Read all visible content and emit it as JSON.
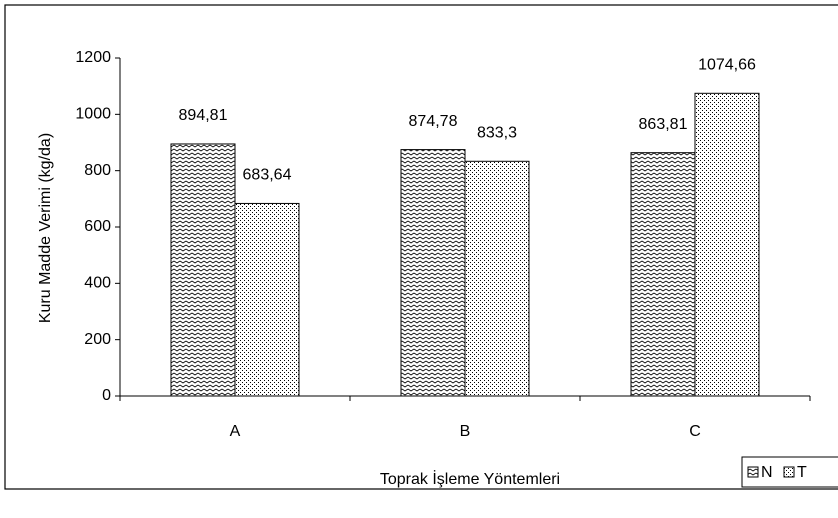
{
  "chart_data": {
    "type": "bar",
    "x_label": "Toprak İşleme Yöntemleri",
    "y_label": "Kuru Madde Verimi (kg/da)",
    "categories": [
      "A",
      "B",
      "C"
    ],
    "series": [
      {
        "name": "N",
        "color": "#000000",
        "values": [
          894.81,
          874.78,
          863.81
        ],
        "value_labels": [
          "894,81",
          "874,78",
          "863,81"
        ]
      },
      {
        "name": "T",
        "color": "#000000",
        "values": [
          683.64,
          833.3,
          1074.66
        ],
        "value_labels": [
          "683,64",
          "833,3",
          "1074,66"
        ]
      }
    ],
    "ylim": [
      0,
      1200
    ],
    "yticks": [
      0,
      200,
      400,
      600,
      800,
      1000,
      1200
    ],
    "legend": "bottom-right"
  }
}
